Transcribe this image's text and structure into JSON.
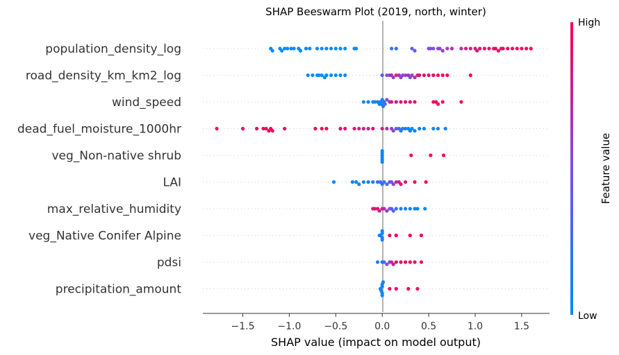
{
  "chart_data": {
    "type": "scatter",
    "subtype": "shap-beeswarm",
    "title": "SHAP Beeswarm Plot (2019, north, winter)",
    "xlabel": "SHAP value (impact on model output)",
    "xlim": [
      -1.93,
      1.8
    ],
    "xticks": [
      -1.5,
      -1.0,
      -0.5,
      0.0,
      0.5,
      1.0,
      1.5
    ],
    "xtick_labels": [
      "−1.5",
      "−1.0",
      "−0.5",
      "0.0",
      "0.5",
      "1.0",
      "1.5"
    ],
    "colorbar": {
      "title": "Feature value",
      "high_label": "High",
      "low_label": "Low",
      "low_color": "#008bfb",
      "high_color": "#ff0052"
    },
    "features": [
      {
        "name": "population_density_log",
        "points": [
          [
            -1.2,
            0
          ],
          [
            -1.18,
            0
          ],
          [
            -1.1,
            0
          ],
          [
            -1.08,
            0
          ],
          [
            -1.05,
            0
          ],
          [
            -1.02,
            0
          ],
          [
            -0.98,
            0
          ],
          [
            -0.95,
            0
          ],
          [
            -0.9,
            0
          ],
          [
            -0.88,
            0
          ],
          [
            -0.82,
            0
          ],
          [
            -0.78,
            0
          ],
          [
            -0.7,
            0
          ],
          [
            -0.65,
            0
          ],
          [
            -0.6,
            0
          ],
          [
            -0.55,
            0
          ],
          [
            -0.5,
            0
          ],
          [
            -0.45,
            0
          ],
          [
            -0.4,
            0
          ],
          [
            -0.3,
            0
          ],
          [
            -0.28,
            0
          ],
          [
            0.1,
            0.2
          ],
          [
            0.15,
            0.2
          ],
          [
            0.32,
            0.4
          ],
          [
            0.35,
            0.4
          ],
          [
            0.5,
            0.5
          ],
          [
            0.52,
            0.5
          ],
          [
            0.55,
            0.5
          ],
          [
            0.6,
            0.5
          ],
          [
            0.62,
            0.6
          ],
          [
            0.65,
            0.6
          ],
          [
            0.7,
            0.6
          ],
          [
            0.75,
            0.7
          ],
          [
            0.85,
            0.7
          ],
          [
            0.9,
            0.8
          ],
          [
            0.95,
            0.8
          ],
          [
            1.0,
            0.85
          ],
          [
            1.02,
            0.85
          ],
          [
            1.05,
            0.9
          ],
          [
            1.1,
            0.9
          ],
          [
            1.15,
            0.95
          ],
          [
            1.2,
            0.95
          ],
          [
            1.22,
            0.95
          ],
          [
            1.25,
            0.95
          ],
          [
            1.28,
            0.9
          ],
          [
            1.3,
            0.95
          ],
          [
            1.35,
            0.95
          ],
          [
            1.4,
            0.95
          ],
          [
            1.45,
            0.95
          ],
          [
            1.5,
            0.95
          ],
          [
            1.55,
            0.95
          ],
          [
            1.6,
            0.95
          ]
        ]
      },
      {
        "name": "road_density_km_km2_log",
        "points": [
          [
            -0.8,
            0
          ],
          [
            -0.75,
            0
          ],
          [
            -0.7,
            0
          ],
          [
            -0.68,
            0
          ],
          [
            -0.65,
            0
          ],
          [
            -0.62,
            0
          ],
          [
            -0.6,
            0
          ],
          [
            -0.55,
            0
          ],
          [
            -0.5,
            0
          ],
          [
            -0.45,
            0
          ],
          [
            -0.4,
            0
          ],
          [
            0.0,
            0.3
          ],
          [
            0.05,
            0.5
          ],
          [
            0.08,
            0.6
          ],
          [
            0.1,
            0.7
          ],
          [
            0.12,
            0.6
          ],
          [
            0.15,
            0.8
          ],
          [
            0.18,
            0.7
          ],
          [
            0.2,
            0.6
          ],
          [
            0.22,
            0.5
          ],
          [
            0.25,
            0.6
          ],
          [
            0.28,
            0.7
          ],
          [
            0.3,
            0.5
          ],
          [
            0.32,
            0.6
          ],
          [
            0.35,
            0.7
          ],
          [
            0.38,
            0.8
          ],
          [
            0.4,
            0.9
          ],
          [
            0.45,
            0.9
          ],
          [
            0.5,
            0.95
          ],
          [
            0.55,
            0.95
          ],
          [
            0.6,
            0.95
          ],
          [
            0.65,
            0.95
          ],
          [
            0.7,
            0.95
          ],
          [
            0.95,
            0.95
          ]
        ]
      },
      {
        "name": "wind_speed",
        "points": [
          [
            -0.2,
            0.05
          ],
          [
            -0.15,
            0.05
          ],
          [
            -0.1,
            0.05
          ],
          [
            -0.08,
            0.05
          ],
          [
            -0.05,
            0.05
          ],
          [
            -0.03,
            0.05
          ],
          [
            -0.02,
            0.05
          ],
          [
            -0.01,
            0.05
          ],
          [
            0.0,
            0.1
          ],
          [
            0.01,
            0.1
          ],
          [
            0.02,
            0.2
          ],
          [
            0.03,
            0.3
          ],
          [
            0.05,
            0.5
          ],
          [
            0.08,
            0.7
          ],
          [
            0.1,
            0.8
          ],
          [
            0.15,
            0.85
          ],
          [
            0.2,
            0.9
          ],
          [
            0.25,
            0.9
          ],
          [
            0.3,
            0.9
          ],
          [
            0.35,
            0.9
          ],
          [
            0.55,
            0.95
          ],
          [
            0.58,
            0.95
          ],
          [
            0.6,
            0.95
          ],
          [
            0.65,
            0.95
          ],
          [
            0.85,
            0.95
          ]
        ]
      },
      {
        "name": "dead_fuel_moisture_1000hr",
        "points": [
          [
            -1.78,
            0.95
          ],
          [
            -1.5,
            0.95
          ],
          [
            -1.35,
            0.95
          ],
          [
            -1.28,
            0.95
          ],
          [
            -1.25,
            0.95
          ],
          [
            -1.22,
            0.95
          ],
          [
            -1.2,
            0.95
          ],
          [
            -1.18,
            0.95
          ],
          [
            -1.05,
            0.95
          ],
          [
            -0.72,
            0.95
          ],
          [
            -0.65,
            0.95
          ],
          [
            -0.6,
            0.95
          ],
          [
            -0.45,
            0.9
          ],
          [
            -0.4,
            0.9
          ],
          [
            -0.3,
            0.9
          ],
          [
            -0.25,
            0.8
          ],
          [
            -0.2,
            0.8
          ],
          [
            -0.15,
            0.8
          ],
          [
            -0.1,
            0.9
          ],
          [
            0.0,
            0.8
          ],
          [
            0.05,
            0.7
          ],
          [
            0.1,
            0.6
          ],
          [
            0.12,
            0.5
          ],
          [
            0.15,
            0.4
          ],
          [
            0.18,
            0.3
          ],
          [
            0.2,
            0.2
          ],
          [
            0.22,
            0.1
          ],
          [
            0.25,
            0.05
          ],
          [
            0.28,
            0.05
          ],
          [
            0.3,
            0.05
          ],
          [
            0.32,
            0.05
          ],
          [
            0.35,
            0.05
          ],
          [
            0.4,
            0.05
          ],
          [
            0.45,
            0.05
          ],
          [
            0.55,
            0.05
          ],
          [
            0.6,
            0.05
          ],
          [
            0.68,
            0.05
          ]
        ]
      },
      {
        "name": "veg_Non-native shrub",
        "points": [
          [
            0.0,
            0.05
          ],
          [
            0.0,
            0.05
          ],
          [
            0.0,
            0.05
          ],
          [
            0.0,
            0.05
          ],
          [
            0.0,
            0.05
          ],
          [
            0.0,
            0.05
          ],
          [
            0.31,
            0.95
          ],
          [
            0.52,
            0.95
          ],
          [
            0.66,
            0.95
          ]
        ]
      },
      {
        "name": "LAI",
        "points": [
          [
            -0.52,
            0.05
          ],
          [
            -0.32,
            0.05
          ],
          [
            -0.28,
            0.05
          ],
          [
            -0.25,
            0.05
          ],
          [
            -0.2,
            0.05
          ],
          [
            -0.15,
            0.05
          ],
          [
            -0.1,
            0.1
          ],
          [
            -0.05,
            0.2
          ],
          [
            -0.02,
            0.3
          ],
          [
            0.0,
            0.1
          ],
          [
            0.02,
            0.2
          ],
          [
            0.05,
            0.3
          ],
          [
            0.08,
            0.4
          ],
          [
            0.1,
            0.5
          ],
          [
            0.12,
            0.6
          ],
          [
            0.15,
            0.7
          ],
          [
            0.18,
            0.8
          ],
          [
            0.2,
            0.9
          ],
          [
            0.25,
            0.9
          ],
          [
            0.35,
            0.95
          ],
          [
            0.47,
            0.95
          ]
        ]
      },
      {
        "name": "max_relative_humidity",
        "points": [
          [
            -0.1,
            0.9
          ],
          [
            -0.08,
            0.9
          ],
          [
            -0.05,
            0.9
          ],
          [
            -0.03,
            0.8
          ],
          [
            0.0,
            0.8
          ],
          [
            0.02,
            0.7
          ],
          [
            0.05,
            0.6
          ],
          [
            0.08,
            0.5
          ],
          [
            0.1,
            0.4
          ],
          [
            0.12,
            0.3
          ],
          [
            0.15,
            0.2
          ],
          [
            0.2,
            0.1
          ],
          [
            0.25,
            0.1
          ],
          [
            0.3,
            0.05
          ],
          [
            0.35,
            0.05
          ],
          [
            0.38,
            0.05
          ],
          [
            0.46,
            0.05
          ]
        ]
      },
      {
        "name": "veg_Native Conifer Alpine",
        "points": [
          [
            -0.03,
            0.05
          ],
          [
            -0.02,
            0.05
          ],
          [
            0.0,
            0.05
          ],
          [
            0.0,
            0.05
          ],
          [
            0.0,
            0.05
          ],
          [
            0.0,
            0.05
          ],
          [
            0.08,
            0.95
          ],
          [
            0.15,
            0.95
          ],
          [
            0.3,
            0.95
          ],
          [
            0.42,
            0.95
          ]
        ]
      },
      {
        "name": "pdsi",
        "points": [
          [
            -0.05,
            0.1
          ],
          [
            0.0,
            0.1
          ],
          [
            0.02,
            0.3
          ],
          [
            0.05,
            0.5
          ],
          [
            0.08,
            0.6
          ],
          [
            0.1,
            0.7
          ],
          [
            0.12,
            0.8
          ],
          [
            0.15,
            0.9
          ],
          [
            0.2,
            0.95
          ],
          [
            0.25,
            0.95
          ],
          [
            0.3,
            0.95
          ],
          [
            0.35,
            0.95
          ],
          [
            0.42,
            0.95
          ]
        ]
      },
      {
        "name": "precipitation_amount",
        "points": [
          [
            -0.02,
            0.05
          ],
          [
            -0.01,
            0.05
          ],
          [
            0.0,
            0.05
          ],
          [
            0.0,
            0.05
          ],
          [
            0.0,
            0.05
          ],
          [
            0.0,
            0.05
          ],
          [
            0.01,
            0.05
          ],
          [
            0.08,
            0.95
          ],
          [
            0.15,
            0.95
          ],
          [
            0.28,
            0.95
          ],
          [
            0.38,
            0.95
          ]
        ]
      }
    ]
  }
}
